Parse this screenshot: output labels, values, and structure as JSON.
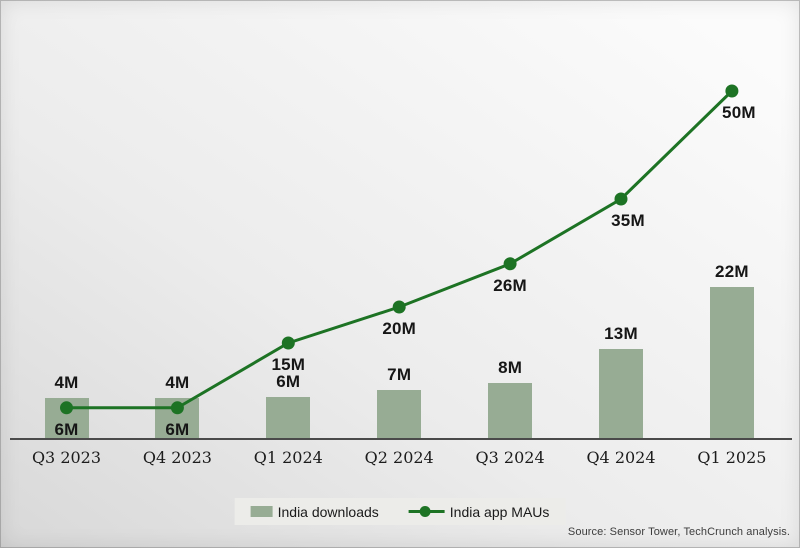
{
  "chart_data": {
    "type": "bar+line",
    "title": "",
    "unit": "M",
    "categories": [
      "Q3 2023",
      "Q4 2023",
      "Q1 2024",
      "Q2 2024",
      "Q3 2024",
      "Q4 2024",
      "Q1 2025"
    ],
    "series": [
      {
        "name": "India downloads",
        "type": "bar",
        "color": "#97ac94",
        "values": [
          4,
          4,
          6,
          7,
          8,
          13,
          22
        ],
        "labels": [
          "4M",
          "4M",
          "6M",
          "7M",
          "8M",
          "13M",
          "22M"
        ]
      },
      {
        "name": "India app MAUs",
        "type": "line",
        "color": "#1d7324",
        "values": [
          6,
          6,
          15,
          20,
          26,
          35,
          50
        ],
        "labels": [
          "6M",
          "6M",
          "15M",
          "20M",
          "26M",
          "35M",
          "50M"
        ]
      }
    ],
    "ylim": [
      0,
      50
    ],
    "grid": false,
    "legend_position": "bottom-center"
  },
  "source_text": "Source: Sensor Tower, TechCrunch analysis.",
  "colors": {
    "bar": "#97ac94",
    "line": "#1d7324",
    "label": "#161616",
    "axis": "#4a4a4a",
    "legend_bg": "#ecece9"
  }
}
